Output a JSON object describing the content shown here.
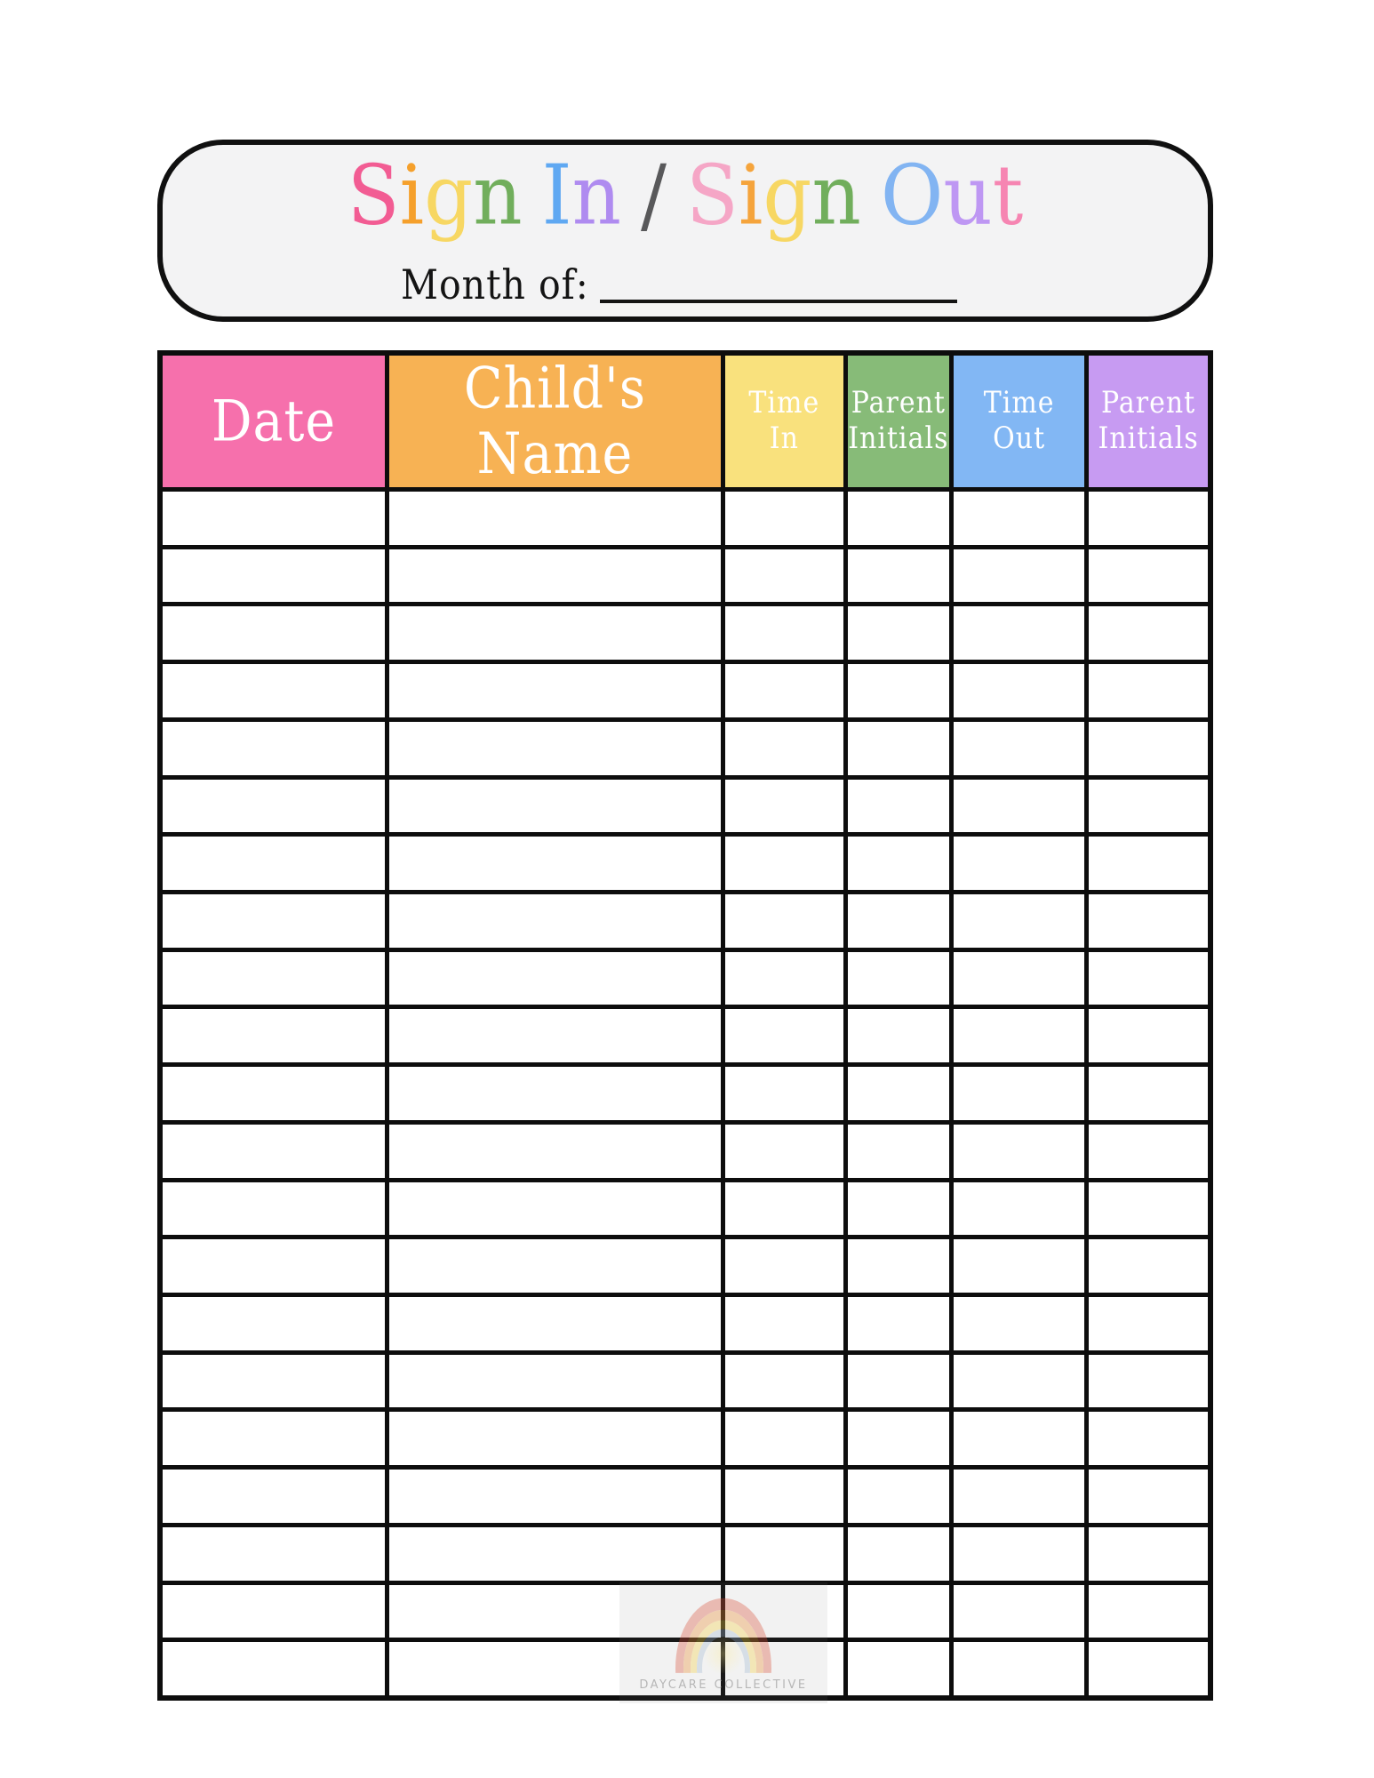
{
  "header_box": {
    "title_letters": [
      {
        "ch": "S",
        "color": "#f25c93"
      },
      {
        "ch": "i",
        "color": "#f5a02c"
      },
      {
        "ch": "g",
        "color": "#f7d763"
      },
      {
        "ch": "n",
        "color": "#71ae5c"
      },
      {
        "ch": " ",
        "color": ""
      },
      {
        "ch": "I",
        "color": "#5fa8f2"
      },
      {
        "ch": "n",
        "color": "#af8bf0"
      },
      {
        "ch": " ",
        "color": ""
      },
      {
        "ch": "/",
        "color": "#58585a"
      },
      {
        "ch": " ",
        "color": ""
      },
      {
        "ch": "S",
        "color": "#f5a6c6"
      },
      {
        "ch": "i",
        "color": "#f5a43c"
      },
      {
        "ch": "g",
        "color": "#f7d763"
      },
      {
        "ch": "n",
        "color": "#71ae5c"
      },
      {
        "ch": " ",
        "color": ""
      },
      {
        "ch": "O",
        "color": "#82b4f2"
      },
      {
        "ch": "u",
        "color": "#be97f3"
      },
      {
        "ch": "t",
        "color": "#f685b2"
      }
    ],
    "month_label": "Month of:"
  },
  "table": {
    "columns": [
      {
        "id": "date",
        "label_lines": [
          "Date"
        ],
        "bg": "#f670ac"
      },
      {
        "id": "childs-name",
        "label_lines": [
          "Child's Name"
        ],
        "bg": "#f7b254"
      },
      {
        "id": "time-in",
        "label_lines": [
          "Time",
          "In"
        ],
        "bg": "#f9e17d"
      },
      {
        "id": "parent-initials-in",
        "label_lines": [
          "Parent",
          "Initials"
        ],
        "bg": "#87bb78"
      },
      {
        "id": "time-out",
        "label_lines": [
          "Time",
          "Out"
        ],
        "bg": "#82b7f4"
      },
      {
        "id": "parent-initials-out",
        "label_lines": [
          "Parent",
          "Initials"
        ],
        "bg": "#c79bf2"
      }
    ],
    "empty_row_count": 21
  },
  "watermark": {
    "brand": "DAYCARE COLLECTIVE"
  },
  "colors": {
    "page_background": "#ffffff",
    "box_fill": "#f3f3f4",
    "border_black": "#0d0d0d",
    "header_text": "#ffffff"
  }
}
